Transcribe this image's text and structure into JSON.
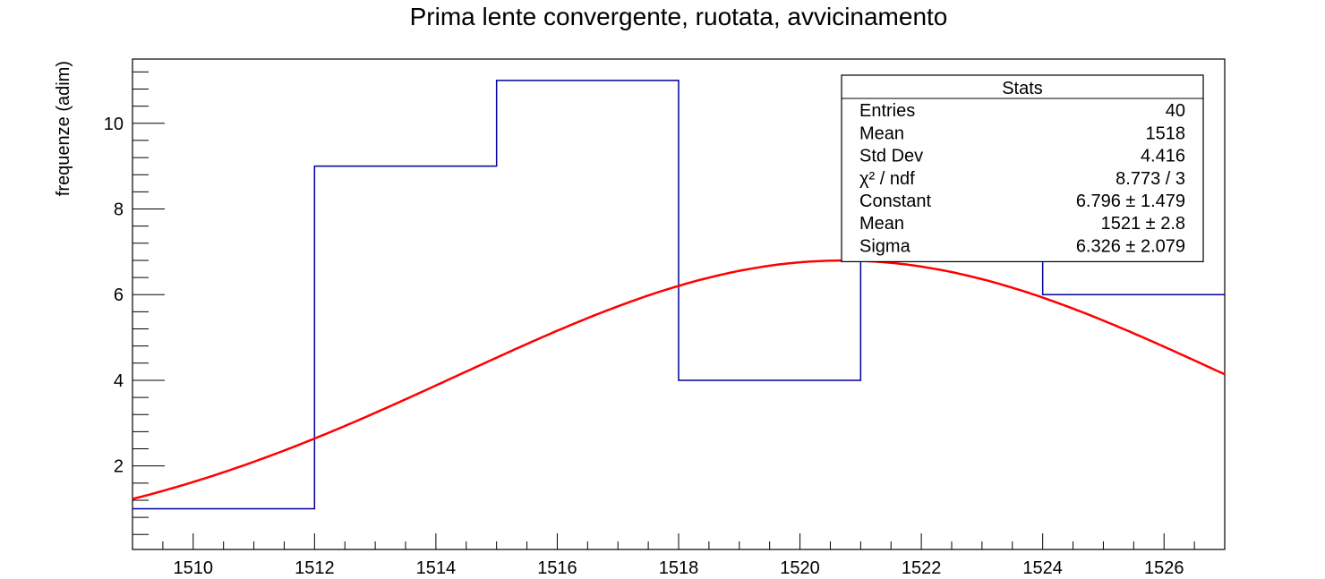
{
  "chart_data": {
    "type": "histogram",
    "title": "Prima lente convergente, ruotata, avvicinamento",
    "xlabel": "",
    "ylabel": "frequenze (adim)",
    "xlim": [
      1509,
      1527
    ],
    "ylim": [
      0.05,
      11.5
    ],
    "x_ticks": [
      1510,
      1512,
      1514,
      1516,
      1518,
      1520,
      1522,
      1524,
      1526
    ],
    "y_ticks": [
      2,
      4,
      6,
      8,
      10
    ],
    "grid": false,
    "series": [
      {
        "kind": "histogram",
        "color": "#000099",
        "bin_edges": [
          1509,
          1512,
          1515,
          1518,
          1521,
          1524,
          1527
        ],
        "counts": [
          1,
          9,
          11,
          4,
          7,
          6
        ]
      },
      {
        "kind": "gaussian-fit",
        "color": "#ff0000",
        "constant": 6.796,
        "mean": 1520.7,
        "sigma": 6.326,
        "x_range": [
          1509,
          1527
        ]
      }
    ],
    "stats_box": {
      "title": "Stats",
      "placement": "top-right",
      "rows": [
        {
          "label": "Entries",
          "value": "40"
        },
        {
          "label": "Mean",
          "value": "1518"
        },
        {
          "label": "Std Dev",
          "value": "4.416"
        },
        {
          "label": "χ² / ndf",
          "value": "8.773 / 3"
        },
        {
          "label": "Constant",
          "value": "6.796 ± 1.479"
        },
        {
          "label": "Mean",
          "value": "1521 ± 2.8"
        },
        {
          "label": "Sigma",
          "value": "6.326 ± 2.079"
        }
      ]
    }
  }
}
